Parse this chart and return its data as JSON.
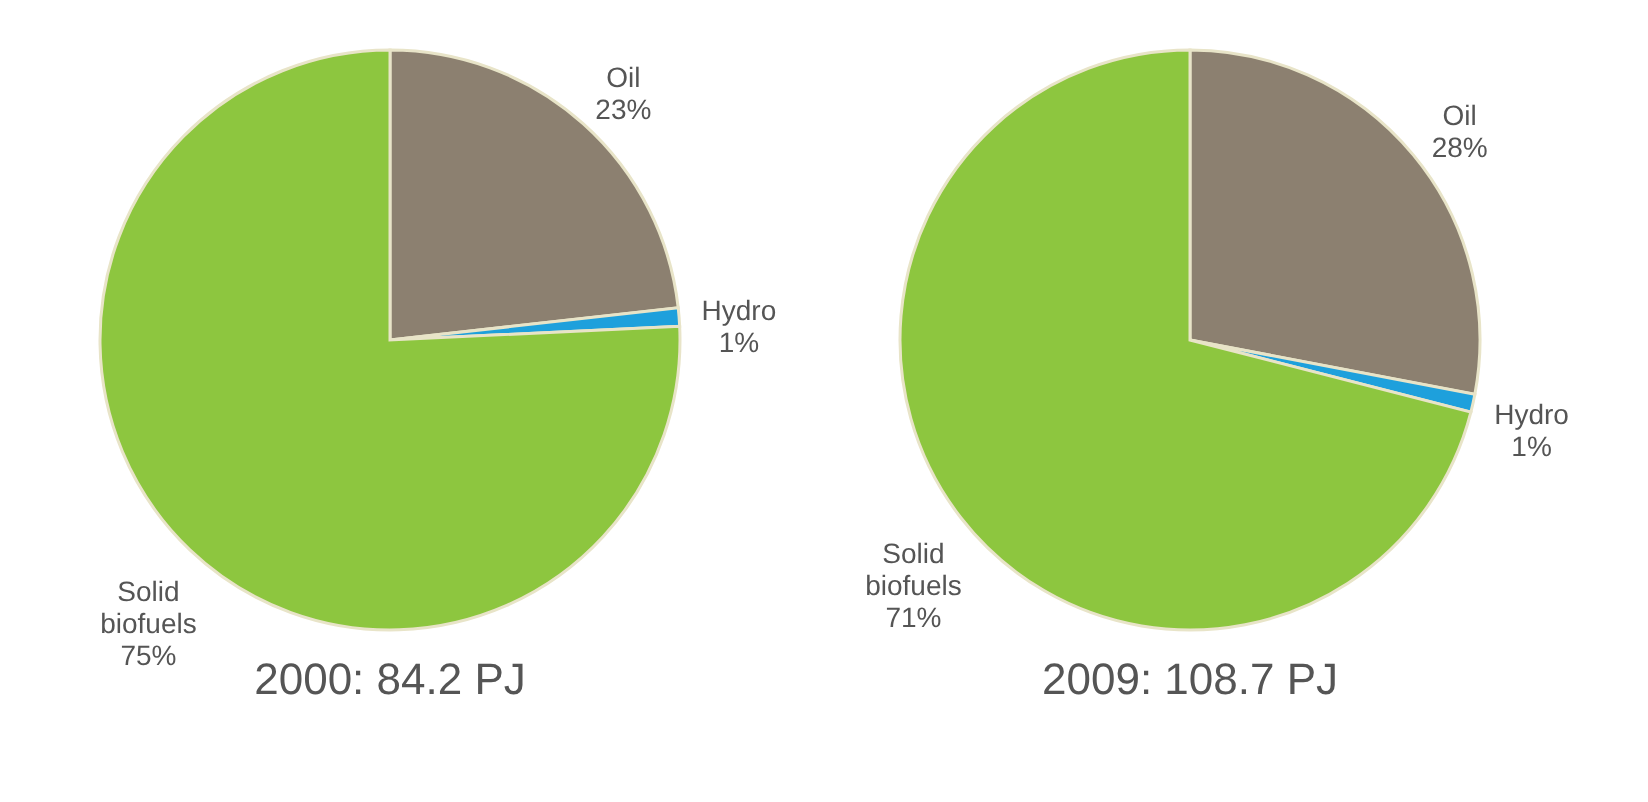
{
  "chart_data": [
    {
      "type": "pie",
      "title": "2000: 84.2 PJ",
      "categories": [
        "Oil",
        "Hydro",
        "Solid biofuels"
      ],
      "values": [
        23,
        1,
        75
      ],
      "value_labels": [
        "23%",
        "1%",
        "75%"
      ],
      "colors": [
        "#8c8070",
        "#1ea0dc",
        "#8dc63f"
      ],
      "legend": false
    },
    {
      "type": "pie",
      "title": "2009: 108.7 PJ",
      "categories": [
        "Oil",
        "Hydro",
        "Solid biofuels"
      ],
      "values": [
        28,
        1,
        71
      ],
      "value_labels": [
        "28%",
        "1%",
        "71%"
      ],
      "colors": [
        "#8c8070",
        "#1ea0dc",
        "#8dc63f"
      ],
      "legend": false
    }
  ]
}
